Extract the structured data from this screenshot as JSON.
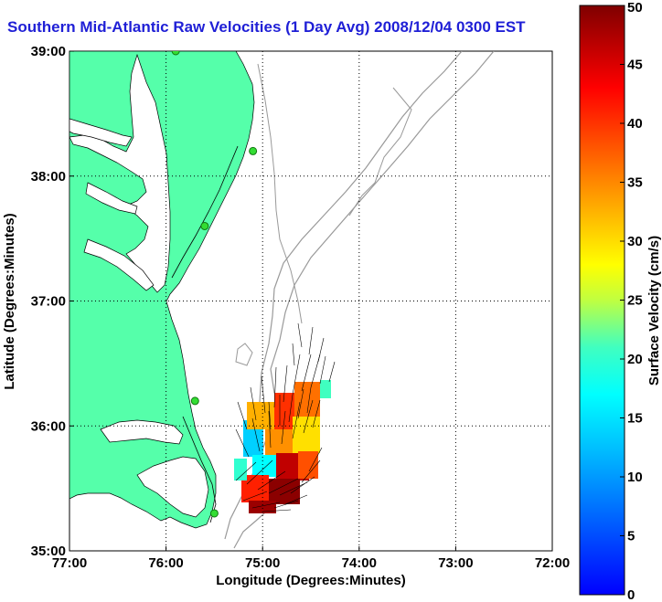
{
  "title": "Southern Mid-Atlantic Raw Velocities (1 Day Avg) 2008/12/04 0300 EST",
  "map": {
    "xlabel": "Longitude (Degrees:Minutes)",
    "ylabel": "Latitude (Degrees:Minutes)",
    "lon_range": [
      -77.0,
      -72.0
    ],
    "lat_range": [
      35.0,
      39.0
    ],
    "x_ticks": [
      {
        "value": -77,
        "label": "77:00"
      },
      {
        "value": -76,
        "label": "76:00"
      },
      {
        "value": -75,
        "label": "75:00"
      },
      {
        "value": -74,
        "label": "74:00"
      },
      {
        "value": -73,
        "label": "73:00"
      },
      {
        "value": -72,
        "label": "72:00"
      }
    ],
    "y_ticks": [
      {
        "value": 35,
        "label": "35:00"
      },
      {
        "value": 36,
        "label": "36:00"
      },
      {
        "value": 37,
        "label": "37:00"
      },
      {
        "value": 38,
        "label": "38:00"
      },
      {
        "value": 39,
        "label": "39:00"
      }
    ],
    "grid": "dotted",
    "land_color": "#55ffaa",
    "water_color": "#ffffff",
    "coastline_color": "#000000",
    "isobath_color": "#999999",
    "vector_color": "#000000",
    "station_color": "#33dd33",
    "station_locations": [
      {
        "lon": -75.9,
        "lat": 39.0
      },
      {
        "lon": -75.1,
        "lat": 38.2
      },
      {
        "lon": -75.6,
        "lat": 37.6
      },
      {
        "lon": -75.7,
        "lat": 36.2
      },
      {
        "lon": -75.5,
        "lat": 35.3
      }
    ]
  },
  "colorbar": {
    "label": "Surface Velocity (cm/s)",
    "min": 0,
    "max": 50,
    "ticks": [
      {
        "value": 0,
        "label": "0"
      },
      {
        "value": 5,
        "label": "5"
      },
      {
        "value": 10,
        "label": "10"
      },
      {
        "value": 15,
        "label": "15"
      },
      {
        "value": 20,
        "label": "20"
      },
      {
        "value": 25,
        "label": "25"
      },
      {
        "value": 30,
        "label": "30"
      },
      {
        "value": 35,
        "label": "35"
      },
      {
        "value": 40,
        "label": "40"
      },
      {
        "value": 45,
        "label": "45"
      },
      {
        "value": 50,
        "label": "50"
      }
    ],
    "colormap": "jet"
  }
}
